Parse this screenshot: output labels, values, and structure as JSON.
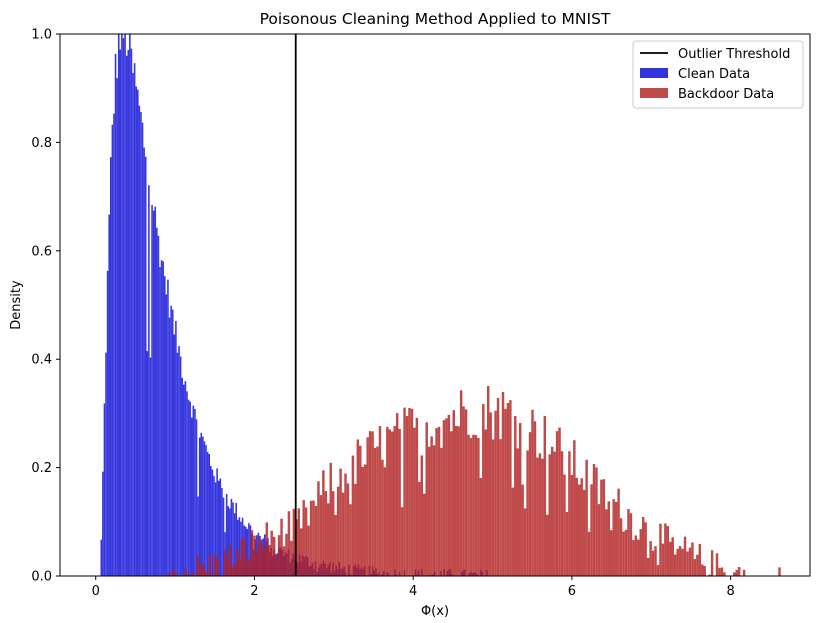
{
  "chart_data": {
    "type": "histogram",
    "title": "Poisonous Cleaning Method Applied to MNIST",
    "xlabel": "Φ(x)",
    "ylabel": "Density",
    "xlim": [
      -0.45,
      9.0
    ],
    "ylim": [
      0,
      1.0
    ],
    "xticks": [
      0,
      2,
      4,
      6,
      8
    ],
    "xtick_labels": [
      "0",
      "2",
      "4",
      "6",
      "8"
    ],
    "yticks": [
      0.0,
      0.2,
      0.4,
      0.6,
      0.8,
      1.0
    ],
    "ytick_labels": [
      "0.0",
      "0.2",
      "0.4",
      "0.6",
      "0.8",
      "1.0"
    ],
    "grid": false,
    "legend_position": "top-right",
    "threshold": {
      "name": "Outlier Threshold",
      "x": 2.52,
      "color": "#000000"
    },
    "series": [
      {
        "name": "Clean Data",
        "color": "#3333dd",
        "bin_width": 0.02,
        "profile_x": [
          0.02,
          0.06,
          0.1,
          0.15,
          0.2,
          0.25,
          0.3,
          0.35,
          0.4,
          0.45,
          0.5,
          0.55,
          0.6,
          0.65,
          0.7,
          0.8,
          0.9,
          1.0,
          1.1,
          1.2,
          1.3,
          1.4,
          1.5,
          1.6,
          1.7,
          1.8,
          1.9,
          2.0,
          2.1,
          2.2,
          2.3,
          2.4,
          2.5,
          2.7,
          2.9,
          3.1,
          3.4,
          3.8,
          4.2,
          4.6,
          5.0
        ],
        "profile_y": [
          0.0,
          0.0,
          0.25,
          0.55,
          0.8,
          0.93,
          0.99,
          1.0,
          0.99,
          0.95,
          0.91,
          0.86,
          0.81,
          0.76,
          0.71,
          0.61,
          0.53,
          0.45,
          0.38,
          0.32,
          0.27,
          0.23,
          0.19,
          0.16,
          0.135,
          0.115,
          0.095,
          0.08,
          0.068,
          0.055,
          0.047,
          0.04,
          0.035,
          0.026,
          0.019,
          0.013,
          0.008,
          0.004,
          0.002,
          0.001,
          0.0
        ]
      },
      {
        "name": "Backdoor Data",
        "color": "#b22222",
        "bin_width": 0.031,
        "profile_x": [
          0.9,
          1.2,
          1.5,
          1.8,
          2.0,
          2.2,
          2.4,
          2.6,
          2.8,
          3.0,
          3.3,
          3.6,
          4.0,
          4.4,
          4.8,
          5.2,
          5.6,
          6.0,
          6.4,
          6.8,
          7.2,
          7.6,
          7.9,
          8.2
        ],
        "profile_y": [
          0.0,
          0.01,
          0.02,
          0.04,
          0.06,
          0.07,
          0.08,
          0.1,
          0.14,
          0.18,
          0.21,
          0.24,
          0.27,
          0.29,
          0.31,
          0.3,
          0.26,
          0.21,
          0.15,
          0.1,
          0.06,
          0.03,
          0.01,
          0.0
        ],
        "outliers": [
          {
            "x": 8.6,
            "y": 0.016
          }
        ]
      }
    ]
  }
}
